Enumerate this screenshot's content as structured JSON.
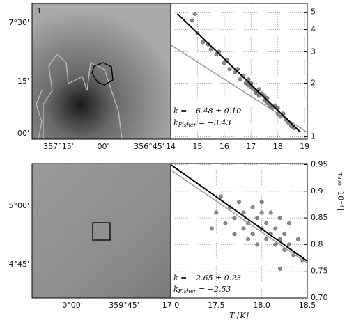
{
  "chart_data": [
    {
      "type": "map",
      "panel_label": "3",
      "ytick_labels": [
        "7°30'",
        "15'",
        "00'"
      ],
      "xtick_labels": [
        "357°15'",
        "00'",
        "356°45'"
      ]
    },
    {
      "type": "scatter",
      "log_y": true,
      "grid": true,
      "xlim": [
        14,
        19.1
      ],
      "xticks": [
        14,
        15,
        16,
        17,
        18,
        19
      ],
      "ylim": [
        0.97,
        5.6
      ],
      "yticks": [
        1,
        2,
        3,
        4,
        5
      ],
      "annotations": [
        {
          "text": "k = −6.48 ± 0.10"
        },
        {
          "base": "k",
          "sub": "Fisher",
          "rest": " = −3.43"
        }
      ],
      "series": [
        {
          "mode": "markers",
          "color": "#3a3a3a",
          "x": [
            14.8,
            14.9,
            15.0,
            15.2,
            15.4,
            15.5,
            15.7,
            15.8,
            16.0,
            16.1,
            16.2,
            16.4,
            16.5,
            16.6,
            16.7,
            16.8,
            16.9,
            16.9,
            17.0,
            17.0,
            17.1,
            17.2,
            17.2,
            17.3,
            17.3,
            17.4,
            17.5,
            17.5,
            17.6,
            17.6,
            17.7,
            17.8,
            17.9,
            18.0,
            18.0,
            18.1,
            18.2,
            18.3,
            18.4,
            18.5,
            18.6
          ],
          "values": [
            4.5,
            4.9,
            3.8,
            3.4,
            3.3,
            3.1,
            2.9,
            3.0,
            2.6,
            2.7,
            2.4,
            2.3,
            2.4,
            2.1,
            2.2,
            2.0,
            2.1,
            1.95,
            1.9,
            2.0,
            1.85,
            1.8,
            1.75,
            1.7,
            1.85,
            1.75,
            1.6,
            1.7,
            1.55,
            1.65,
            1.5,
            1.45,
            1.5,
            1.35,
            1.45,
            1.3,
            1.35,
            1.25,
            1.2,
            1.15,
            1.12
          ]
        },
        {
          "mode": "line",
          "color": "#999999",
          "x": [
            14,
            19.1
          ],
          "values": [
            3.28,
            1.06
          ]
        },
        {
          "mode": "line",
          "color": "#000000",
          "x": [
            14.25,
            18.85
          ],
          "values": [
            4.9,
            1.06
          ]
        }
      ]
    },
    {
      "type": "map",
      "ytick_labels": [
        "5°00'",
        "4°45'"
      ],
      "xtick_labels": [
        "0°00'",
        "359°45'"
      ]
    },
    {
      "type": "scatter",
      "log_y": false,
      "grid": true,
      "xlim": [
        17,
        18.5
      ],
      "xticks": [
        {
          "value": 17,
          "label": "17.0"
        },
        {
          "value": 17.5,
          "label": "17.5"
        },
        {
          "value": 18,
          "label": "18.0"
        },
        {
          "value": 18.5,
          "label": "18.5"
        }
      ],
      "ylim": [
        0.7,
        0.952
      ],
      "yticks": [
        {
          "value": 0.7,
          "label": "0.70"
        },
        {
          "value": 0.75,
          "label": "0.75"
        },
        0.8,
        0.85,
        0.9,
        0.95
      ],
      "xlabel": "T [K]",
      "ylabel": "τ₈₅₀ [10⁻⁴]",
      "annotations": [
        {
          "text": "k = −2.65 ± 0.23"
        },
        {
          "base": "k",
          "sub": "Fisher",
          "rest": " = −2.53"
        }
      ],
      "series": [
        {
          "mode": "markers",
          "color": "#3a3a3a",
          "x": [
            17.45,
            17.5,
            17.55,
            17.6,
            17.65,
            17.7,
            17.7,
            17.75,
            17.8,
            17.8,
            17.85,
            17.85,
            17.9,
            17.9,
            17.95,
            17.95,
            18.0,
            18.0,
            18.0,
            18.05,
            18.05,
            18.1,
            18.1,
            18.15,
            18.15,
            18.2,
            18.2,
            18.25,
            18.25,
            18.3,
            18.3,
            18.35,
            18.4,
            18.45,
            18.2
          ],
          "values": [
            0.83,
            0.86,
            0.89,
            0.84,
            0.87,
            0.82,
            0.85,
            0.88,
            0.83,
            0.86,
            0.81,
            0.84,
            0.87,
            0.82,
            0.85,
            0.8,
            0.83,
            0.86,
            0.88,
            0.81,
            0.84,
            0.82,
            0.86,
            0.8,
            0.83,
            0.81,
            0.85,
            0.79,
            0.82,
            0.8,
            0.84,
            0.78,
            0.81,
            0.77,
            0.755
          ]
        },
        {
          "mode": "line",
          "color": "#999999",
          "x": [
            17,
            18.5
          ],
          "values": [
            0.94,
            0.765
          ]
        },
        {
          "mode": "line",
          "color": "#000000",
          "x": [
            17,
            18.5
          ],
          "values": [
            0.95,
            0.769
          ]
        }
      ]
    }
  ]
}
